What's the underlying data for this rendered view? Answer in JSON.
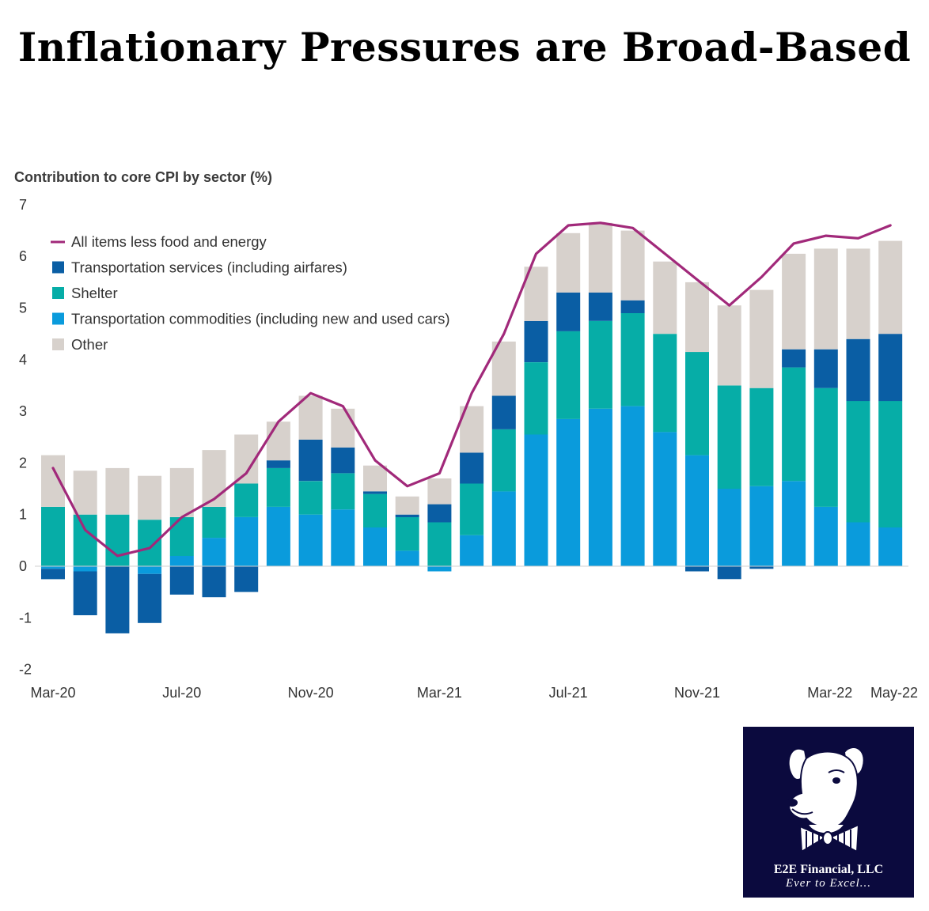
{
  "header": {
    "title": "Inflationary Pressures are Broad-Based"
  },
  "chart_data": {
    "type": "bar",
    "stacked": true,
    "subtitle": "Contribution to core CPI by sector (%)",
    "ylim": [
      -2,
      7
    ],
    "y_ticks": [
      "7",
      "6",
      "5",
      "4",
      "3",
      "2",
      "1",
      "0",
      "-1",
      "-2"
    ],
    "grid": false,
    "legend_position": "top-left",
    "categories": [
      "Mar-20",
      "Apr-20",
      "May-20",
      "Jun-20",
      "Jul-20",
      "Aug-20",
      "Sep-20",
      "Oct-20",
      "Nov-20",
      "Dec-20",
      "Jan-21",
      "Feb-21",
      "Mar-21",
      "Apr-21",
      "May-21",
      "Jun-21",
      "Jul-21",
      "Aug-21",
      "Sep-21",
      "Oct-21",
      "Nov-21",
      "Dec-21",
      "Jan-22",
      "Feb-22",
      "Mar-22",
      "Apr-22",
      "May-22"
    ],
    "x_tick_labels": [
      {
        "index": 0,
        "label": "Mar-20"
      },
      {
        "index": 4,
        "label": "Jul-20"
      },
      {
        "index": 8,
        "label": "Nov-20"
      },
      {
        "index": 12,
        "label": "Mar-21"
      },
      {
        "index": 16,
        "label": "Jul-21"
      },
      {
        "index": 20,
        "label": "Nov-21"
      },
      {
        "index": 24,
        "label": "Mar-22"
      },
      {
        "index": 26,
        "label": "May-22"
      }
    ],
    "series": [
      {
        "name": "Transportation commodities (including new and used cars)",
        "kind": "bar",
        "color": "#0a9bdc",
        "values": [
          -0.05,
          -0.1,
          0.0,
          -0.15,
          0.2,
          0.55,
          0.95,
          1.15,
          1.0,
          1.1,
          0.75,
          0.3,
          -0.1,
          0.6,
          1.45,
          2.55,
          2.85,
          3.05,
          3.1,
          2.6,
          2.15,
          1.5,
          1.55,
          1.65,
          1.15,
          0.85,
          0.75
        ]
      },
      {
        "name": "Shelter",
        "kind": "bar",
        "color": "#06ada7",
        "values": [
          1.15,
          1.0,
          1.0,
          0.9,
          0.75,
          0.6,
          0.65,
          0.75,
          0.65,
          0.7,
          0.65,
          0.65,
          0.85,
          1.0,
          1.2,
          1.4,
          1.7,
          1.7,
          1.8,
          1.9,
          2.0,
          2.0,
          1.9,
          2.2,
          2.3,
          2.35,
          2.45
        ]
      },
      {
        "name": "Transportation services (including airfares)",
        "kind": "bar",
        "color": "#0a5ea4",
        "values": [
          -0.2,
          -0.85,
          -1.3,
          -0.95,
          -0.55,
          -0.6,
          -0.5,
          0.15,
          0.8,
          0.5,
          0.05,
          0.05,
          0.35,
          0.6,
          0.65,
          0.8,
          0.75,
          0.55,
          0.25,
          0.0,
          -0.1,
          -0.25,
          -0.05,
          0.35,
          0.75,
          1.2,
          1.3
        ]
      },
      {
        "name": "Other",
        "kind": "bar",
        "color": "#d7d1cc",
        "values": [
          1.0,
          0.85,
          0.9,
          0.85,
          0.95,
          1.1,
          0.95,
          0.75,
          0.85,
          0.75,
          0.5,
          0.35,
          0.5,
          0.9,
          1.05,
          1.05,
          1.15,
          1.35,
          1.35,
          1.4,
          1.35,
          1.55,
          1.9,
          1.85,
          1.95,
          1.75,
          1.8
        ]
      },
      {
        "name": "All items less food and energy",
        "kind": "line",
        "color": "#a1297a",
        "values": [
          1.9,
          0.7,
          0.2,
          0.35,
          0.95,
          1.3,
          1.8,
          2.8,
          3.35,
          3.1,
          2.05,
          1.55,
          1.8,
          3.35,
          4.5,
          6.05,
          6.6,
          6.65,
          6.55,
          6.05,
          5.55,
          5.05,
          5.6,
          6.25,
          6.4,
          6.35,
          6.6
        ]
      }
    ],
    "legend_order": [
      "All items less food and energy",
      "Transportation services (including airfares)",
      "Shelter",
      "Transportation commodities (including new and used cars)",
      "Other"
    ]
  },
  "logo": {
    "name": "E2E Financial, LLC",
    "tagline": "Ever to Excel...",
    "icon": "dog-with-bowtie-icon",
    "background": "#0b0a3e"
  }
}
